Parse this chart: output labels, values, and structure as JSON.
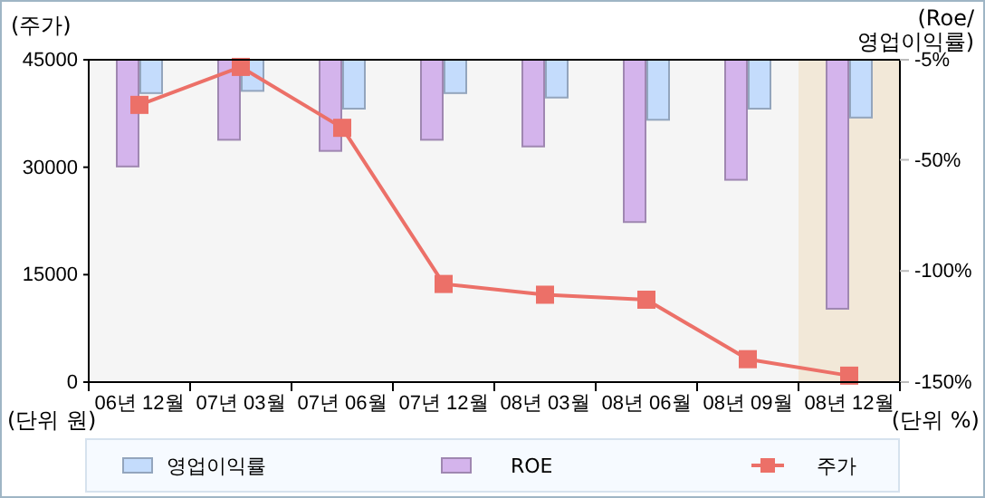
{
  "chart_data": {
    "type": "bar",
    "ylabel": "(주가)",
    "y2label": "(Roe/\n영업이익률)",
    "annotations": [
      "(단위 원)",
      "(단위 %)"
    ],
    "categories": [
      "06년 12월",
      "07년 03월",
      "07년 06월",
      "07년 12월",
      "08년 03월",
      "08년 06월",
      "08년 09월",
      "08년 12월"
    ],
    "series": [
      {
        "name": "영업이익률",
        "axis": "y2",
        "color": "#c4dcfc",
        "values": [
          -20,
          -19,
          -27,
          -20,
          -22,
          -32,
          -27,
          -31
        ]
      },
      {
        "name": "ROE",
        "axis": "y2",
        "color": "#d4b4ec",
        "values": [
          -53,
          -41,
          -46,
          -41,
          -44,
          -78,
          -59,
          -117
        ]
      },
      {
        "name": "주가",
        "type": "line",
        "color": "#ec7068",
        "values": [
          38700,
          44000,
          35500,
          13700,
          12200,
          11500,
          3200,
          900
        ]
      }
    ],
    "ylim": [
      0,
      45000
    ],
    "yticks": [
      0,
      15000,
      30000,
      45000
    ],
    "y2lim": [
      -150,
      -5
    ],
    "y2ticks": [
      {
        "value": -5,
        "label": "-5%"
      },
      {
        "value": -50,
        "label": "-50%"
      },
      {
        "value": -100,
        "label": "-100%"
      },
      {
        "value": -150,
        "label": "-150%"
      }
    ],
    "bands": [
      {
        "axis": "x",
        "from": "08년 12월",
        "to": "08년 12월",
        "color": "#f2e8d8"
      }
    ],
    "marker": "square",
    "legend": "bottom"
  }
}
